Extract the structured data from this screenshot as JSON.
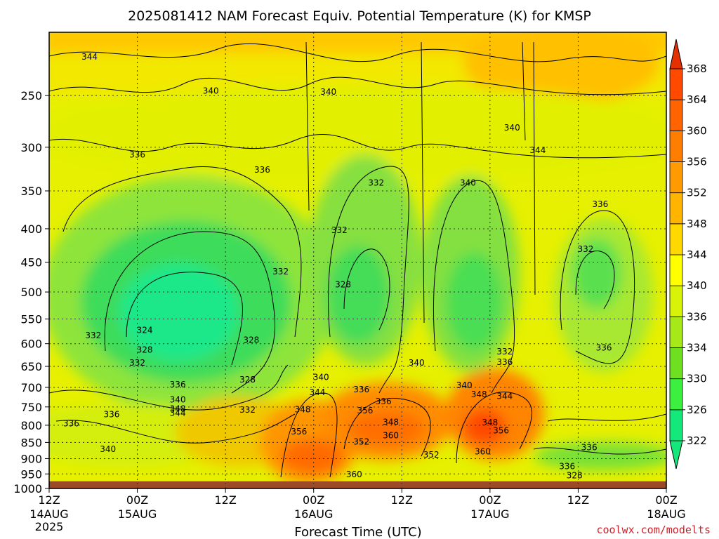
{
  "chart_data": {
    "type": "heatmap",
    "title": "2025081412 NAM Forecast Equiv. Potential Temperature (K) for KMSP",
    "xlabel": "Forecast Time (UTC)",
    "ylabel": "",
    "x_ticks": [
      {
        "hour": 0,
        "line1": "12Z",
        "line2": "14AUG",
        "line3": "2025"
      },
      {
        "hour": 12,
        "line1": "00Z",
        "line2": "15AUG",
        "line3": ""
      },
      {
        "hour": 24,
        "line1": "12Z",
        "line2": "",
        "line3": ""
      },
      {
        "hour": 36,
        "line1": "00Z",
        "line2": "16AUG",
        "line3": ""
      },
      {
        "hour": 48,
        "line1": "12Z",
        "line2": "",
        "line3": ""
      },
      {
        "hour": 60,
        "line1": "00Z",
        "line2": "17AUG",
        "line3": ""
      },
      {
        "hour": 72,
        "line1": "12Z",
        "line2": "",
        "line3": ""
      },
      {
        "hour": 84,
        "line1": "00Z",
        "line2": "18AUG",
        "line3": ""
      }
    ],
    "xlim_hours": [
      0,
      84
    ],
    "y_ticks_hpa": [
      250,
      300,
      350,
      400,
      450,
      500,
      550,
      600,
      650,
      700,
      750,
      800,
      850,
      900,
      950,
      1000
    ],
    "ylim_hpa": [
      200,
      1000
    ],
    "y_scale": "log-pressure",
    "grid": true,
    "colorbar": {
      "labels": [
        322,
        326,
        330,
        334,
        336,
        340,
        344,
        348,
        352,
        356,
        360,
        364,
        368
      ],
      "colors": [
        "#15e87a",
        "#3cf040",
        "#6fe020",
        "#a6e818",
        "#d8f208",
        "#ffff00",
        "#ffd800",
        "#ffb400",
        "#ff9a00",
        "#ff7e00",
        "#ff6400",
        "#ff4a00",
        "#e53000"
      ]
    },
    "ground_color": "#9c4a26",
    "ground_top_hpa": 975,
    "contour_labels": [
      {
        "hour": 5.5,
        "hpa": 218,
        "value": "344"
      },
      {
        "hour": 22,
        "hpa": 246,
        "value": "340"
      },
      {
        "hour": 38,
        "hpa": 247,
        "value": "340"
      },
      {
        "hour": 63,
        "hpa": 280,
        "value": "340"
      },
      {
        "hour": 66.5,
        "hpa": 303,
        "value": "344"
      },
      {
        "hour": 12,
        "hpa": 308,
        "value": "336"
      },
      {
        "hour": 29,
        "hpa": 325,
        "value": "336"
      },
      {
        "hour": 44.5,
        "hpa": 340,
        "value": "332"
      },
      {
        "hour": 57,
        "hpa": 340,
        "value": "340"
      },
      {
        "hour": 75,
        "hpa": 367,
        "value": "336"
      },
      {
        "hour": 39.5,
        "hpa": 402,
        "value": "332"
      },
      {
        "hour": 73,
        "hpa": 430,
        "value": "332"
      },
      {
        "hour": 31.5,
        "hpa": 465,
        "value": "332"
      },
      {
        "hour": 40,
        "hpa": 487,
        "value": "328"
      },
      {
        "hour": 6,
        "hpa": 583,
        "value": "332"
      },
      {
        "hour": 13,
        "hpa": 572,
        "value": "324"
      },
      {
        "hour": 27.5,
        "hpa": 592,
        "value": "328"
      },
      {
        "hour": 75.5,
        "hpa": 609,
        "value": "336"
      },
      {
        "hour": 62,
        "hpa": 617,
        "value": "332"
      },
      {
        "hour": 13,
        "hpa": 613,
        "value": "328"
      },
      {
        "hour": 12,
        "hpa": 642,
        "value": "332"
      },
      {
        "hour": 62,
        "hpa": 640,
        "value": "336"
      },
      {
        "hour": 50,
        "hpa": 642,
        "value": "340"
      },
      {
        "hour": 37,
        "hpa": 675,
        "value": "340"
      },
      {
        "hour": 27,
        "hpa": 681,
        "value": "328"
      },
      {
        "hour": 17.5,
        "hpa": 693,
        "value": "336"
      },
      {
        "hour": 56.5,
        "hpa": 695,
        "value": "340"
      },
      {
        "hour": 42.5,
        "hpa": 705,
        "value": "336"
      },
      {
        "hour": 36.5,
        "hpa": 712,
        "value": "344"
      },
      {
        "hour": 58.5,
        "hpa": 718,
        "value": "348"
      },
      {
        "hour": 62,
        "hpa": 722,
        "value": "344"
      },
      {
        "hour": 17.5,
        "hpa": 731,
        "value": "340"
      },
      {
        "hour": 45.5,
        "hpa": 736,
        "value": "336"
      },
      {
        "hour": 17.5,
        "hpa": 755,
        "value": "348"
      },
      {
        "hour": 17.5,
        "hpa": 766,
        "value": "344"
      },
      {
        "hour": 34.5,
        "hpa": 757,
        "value": "348"
      },
      {
        "hour": 43,
        "hpa": 760,
        "value": "356"
      },
      {
        "hour": 27,
        "hpa": 758,
        "value": "332"
      },
      {
        "hour": 8.5,
        "hpa": 770,
        "value": "336"
      },
      {
        "hour": 3,
        "hpa": 795,
        "value": "336"
      },
      {
        "hour": 46.5,
        "hpa": 791,
        "value": "348"
      },
      {
        "hour": 60,
        "hpa": 792,
        "value": "348"
      },
      {
        "hour": 61.5,
        "hpa": 815,
        "value": "356"
      },
      {
        "hour": 34,
        "hpa": 818,
        "value": "356"
      },
      {
        "hour": 46.5,
        "hpa": 830,
        "value": "360"
      },
      {
        "hour": 42.5,
        "hpa": 848,
        "value": "352"
      },
      {
        "hour": 8,
        "hpa": 870,
        "value": "340"
      },
      {
        "hour": 73.5,
        "hpa": 865,
        "value": "336"
      },
      {
        "hour": 59,
        "hpa": 878,
        "value": "360"
      },
      {
        "hour": 52,
        "hpa": 888,
        "value": "352"
      },
      {
        "hour": 70.5,
        "hpa": 925,
        "value": "336"
      },
      {
        "hour": 71.5,
        "hpa": 955,
        "value": "328"
      },
      {
        "hour": 41.5,
        "hpa": 952,
        "value": "360"
      }
    ]
  },
  "credit": "coolwx.com/modelts"
}
